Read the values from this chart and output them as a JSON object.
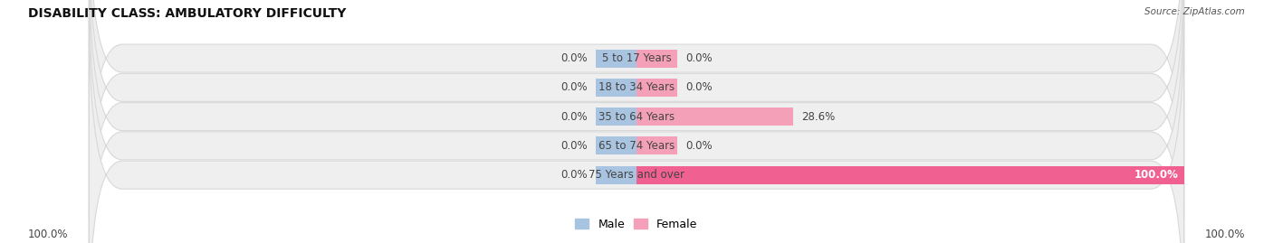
{
  "title": "DISABILITY CLASS: AMBULATORY DIFFICULTY",
  "source": "Source: ZipAtlas.com",
  "categories": [
    "5 to 17 Years",
    "18 to 34 Years",
    "35 to 64 Years",
    "65 to 74 Years",
    "75 Years and over"
  ],
  "male_values": [
    0.0,
    0.0,
    0.0,
    0.0,
    0.0
  ],
  "female_values": [
    0.0,
    0.0,
    28.6,
    0.0,
    100.0
  ],
  "male_color": "#a8c4e0",
  "female_color": "#f4a0b8",
  "female_color_100": "#f06090",
  "row_bg_color": "#efefef",
  "row_border_color": "#d8d8d8",
  "max_value": 100.0,
  "bottom_left": "100.0%",
  "bottom_right": "100.0%",
  "title_fontsize": 10,
  "label_fontsize": 8.5,
  "legend_fontsize": 9,
  "text_color": "#444444",
  "white_label_color": "#ffffff"
}
